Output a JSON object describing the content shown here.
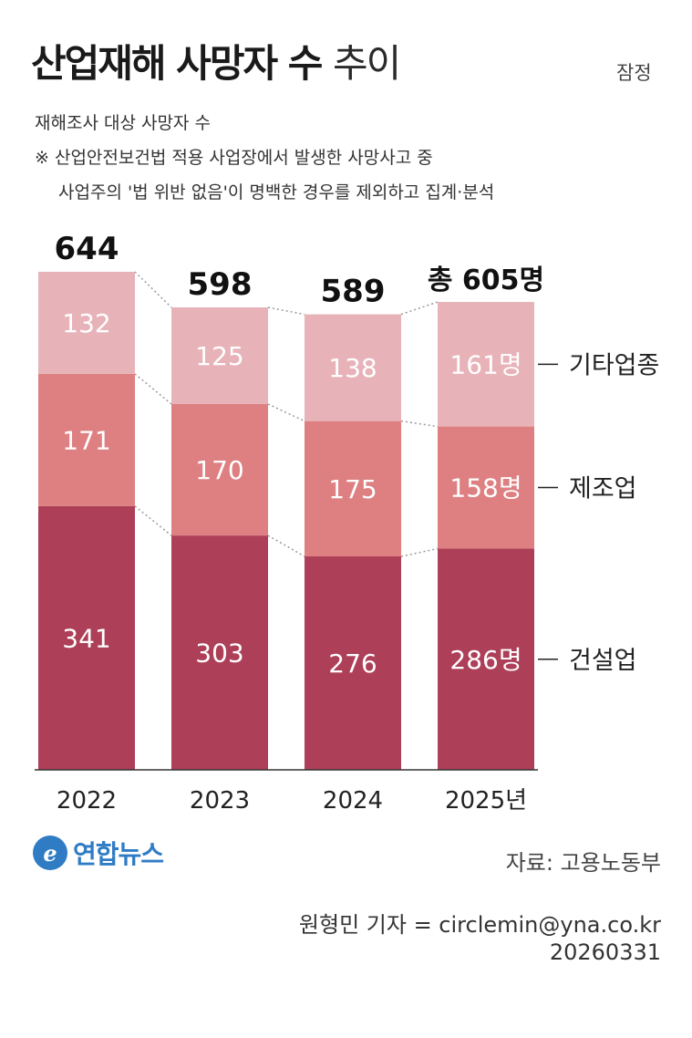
{
  "header": {
    "title_bold": "산업재해 사망자 수",
    "title_light": "추이",
    "provisional": "잠정",
    "subtitle": "재해조사 대상 사망자 수",
    "note_line1": "※ 산업안전보건법 적용 사업장에서 발생한 사망사고 중",
    "note_line2": "사업주의 '법 위반 없음'이 명백한 경우를 제외하고 집계·분석"
  },
  "colors": {
    "construction": "#AD3F58",
    "manufacturing": "#DE8082",
    "other": "#E7B3B8",
    "connector": "#999999",
    "axis": "#333333",
    "brand": "#2F7CC5"
  },
  "chart_data": {
    "type": "bar",
    "stacked": true,
    "categories": [
      "2022",
      "2023",
      "2024",
      "2025년"
    ],
    "series": [
      {
        "name": "건설업",
        "values": [
          341,
          303,
          276,
          286
        ],
        "labels": [
          "341",
          "303",
          "276",
          "286명"
        ]
      },
      {
        "name": "제조업",
        "values": [
          171,
          170,
          175,
          158
        ],
        "labels": [
          "171",
          "170",
          "175",
          "158명"
        ]
      },
      {
        "name": "기타업종",
        "values": [
          132,
          125,
          138,
          161
        ],
        "labels": [
          "132",
          "125",
          "138",
          "161명"
        ]
      }
    ],
    "totals": [
      644,
      598,
      589,
      605
    ],
    "total_labels": [
      "644",
      "598",
      "589",
      "총 605명"
    ],
    "ylim": [
      0,
      644
    ],
    "legend_position": "right"
  },
  "footer": {
    "logo_mark": "e",
    "logo_text": "연합뉴스",
    "source": "자료: 고용노동부",
    "reporter": "원형민 기자 = circlemin@yna.co.kr",
    "date": "20260331"
  }
}
